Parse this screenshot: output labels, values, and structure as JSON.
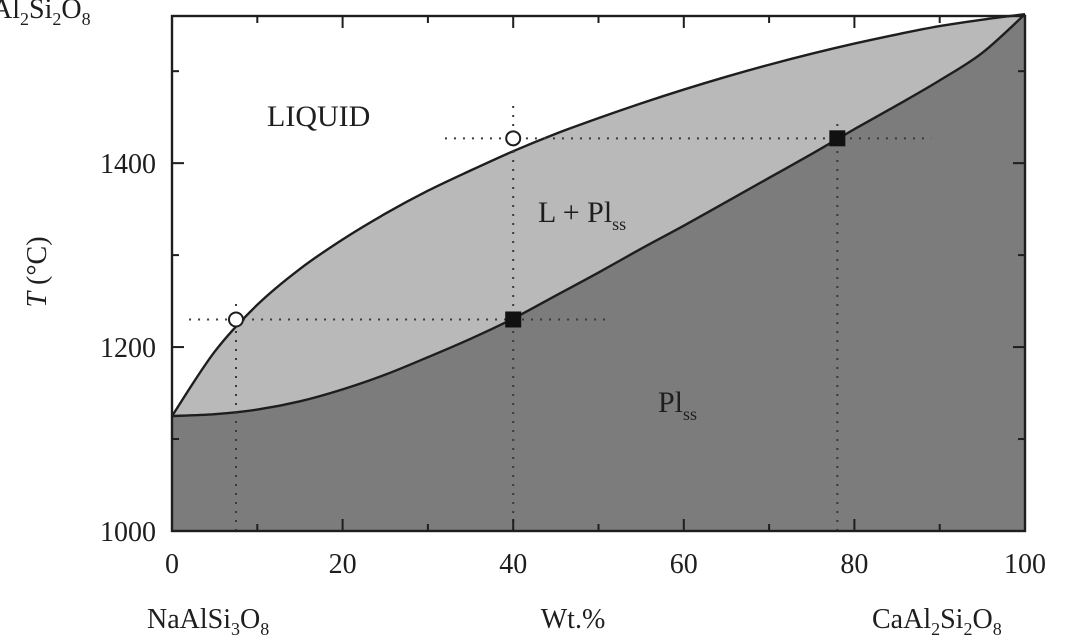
{
  "chart_data": {
    "type": "area",
    "x_axis": {
      "range": [
        0,
        100
      ],
      "ticks": [
        0,
        20,
        40,
        60,
        80,
        100
      ],
      "label": "Wt.%"
    },
    "y_axis": {
      "range": [
        1000,
        1560
      ],
      "ticks": [
        1000,
        1200,
        1400
      ],
      "label_italic": "T",
      "label_rest": " (°C)"
    },
    "endmembers": {
      "left": {
        "main": "NaAlSi",
        "s1": "3",
        "mid": "O",
        "s2": "8"
      },
      "right": {
        "main": "CaAl",
        "s1": "2",
        "mid": "Si",
        "s2": "2",
        "tail": "O",
        "s3": "8"
      },
      "top_left_partial": {
        "a": "Al",
        "s1": "2",
        "b": "Si",
        "s2": "2",
        "c": "O",
        "s3": "8"
      }
    },
    "regions": {
      "liquid": "LIQUID",
      "two_phase": {
        "main": "L + Pl",
        "sub": "ss"
      },
      "solid": {
        "main": "Pl",
        "sub": "ss"
      }
    },
    "series": [
      {
        "name": "liquidus",
        "x": [
          0,
          5,
          10,
          15,
          20,
          25,
          30,
          35,
          40,
          45,
          50,
          55,
          60,
          65,
          70,
          75,
          80,
          85,
          90,
          95,
          100
        ],
        "y": [
          1125,
          1195,
          1246,
          1285,
          1317,
          1345,
          1370,
          1392,
          1413,
          1432,
          1449,
          1465,
          1480,
          1494,
          1507,
          1519,
          1530,
          1540,
          1549,
          1556,
          1562
        ]
      },
      {
        "name": "solidus",
        "x": [
          0,
          5,
          10,
          15,
          20,
          25,
          30,
          35,
          40,
          45,
          50,
          55,
          60,
          65,
          70,
          75,
          80,
          85,
          90,
          95,
          100
        ],
        "y": [
          1125,
          1127,
          1132,
          1141,
          1154,
          1170,
          1189,
          1209,
          1231,
          1256,
          1281,
          1307,
          1332,
          1358,
          1384,
          1410,
          1437,
          1463,
          1490,
          1520,
          1562
        ]
      }
    ],
    "points": [
      {
        "name": "liquid-composition-1230",
        "x": 7.5,
        "y": 1230,
        "marker": "open-circle"
      },
      {
        "name": "liquid-composition-1427",
        "x": 40,
        "y": 1427,
        "marker": "open-circle"
      },
      {
        "name": "plagioclase-composition-1230",
        "x": 40,
        "y": 1230,
        "marker": "filled-square"
      },
      {
        "name": "plagioclase-composition-1427",
        "x": 78,
        "y": 1427,
        "marker": "filled-square"
      }
    ],
    "tie_lines": [
      {
        "y": 1230,
        "x_from": 2,
        "x_to": 51
      },
      {
        "y": 1427,
        "x_from": 32,
        "x_to": 89
      }
    ],
    "verticals": [
      {
        "x": 7.5,
        "y_from": 1000,
        "y_to": 1250
      },
      {
        "x": 40,
        "y_from": 1000,
        "y_to": 1465
      },
      {
        "x": 78,
        "y_from": 1000,
        "y_to": 1450
      }
    ],
    "colors": {
      "liquid": "#ffffff",
      "two_phase": "#b9b9b9",
      "solid": "#7c7c7c",
      "lines": "#1e1e1e",
      "dotted": "#3a3a3a"
    }
  }
}
